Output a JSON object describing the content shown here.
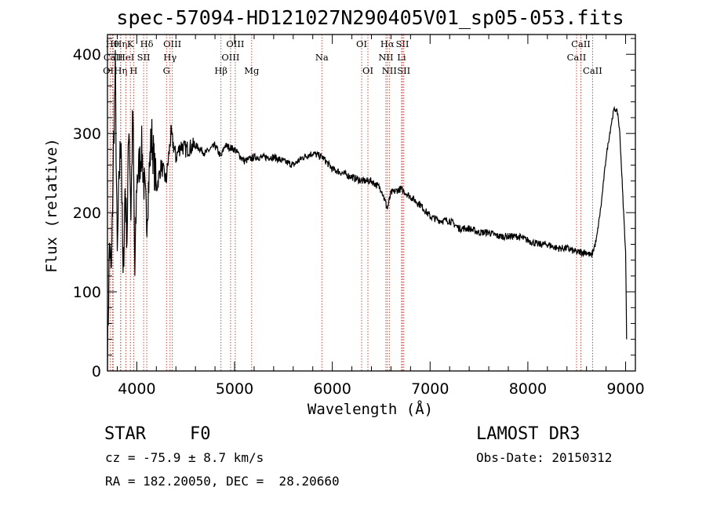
{
  "chart_data": {
    "type": "line",
    "title": "spec-57094-HD121027N290405V01_sp05-053.fits",
    "xlabel": "Wavelength (Å)",
    "ylabel": "Flux (relative)",
    "xlim": [
      3700,
      9100
    ],
    "ylim": [
      0,
      425
    ],
    "xticks": [
      4000,
      5000,
      6000,
      7000,
      8000,
      9000
    ],
    "yticks": [
      0,
      100,
      200,
      300,
      400
    ],
    "grid": false,
    "series": [
      {
        "name": "flux",
        "x": [
          3700,
          3720,
          3740,
          3760,
          3780,
          3800,
          3820,
          3840,
          3860,
          3880,
          3900,
          3920,
          3940,
          3960,
          3980,
          4000,
          4050,
          4100,
          4150,
          4200,
          4250,
          4300,
          4350,
          4400,
          4450,
          4500,
          4600,
          4700,
          4800,
          4861,
          4900,
          5000,
          5100,
          5200,
          5300,
          5400,
          5500,
          5600,
          5700,
          5800,
          5900,
          6000,
          6100,
          6200,
          6300,
          6400,
          6500,
          6563,
          6600,
          6700,
          6800,
          6900,
          7000,
          7100,
          7200,
          7300,
          7400,
          7500,
          7600,
          7700,
          7800,
          7900,
          8000,
          8100,
          8200,
          8300,
          8400,
          8500,
          8600,
          8650,
          8700,
          8750,
          8800,
          8850,
          8880,
          8900,
          8920,
          8940,
          8960,
          8980,
          9000,
          9010
        ],
        "y": [
          10,
          160,
          120,
          270,
          380,
          140,
          250,
          300,
          110,
          230,
          170,
          320,
          200,
          330,
          120,
          240,
          280,
          190,
          300,
          230,
          260,
          240,
          300,
          270,
          285,
          280,
          285,
          275,
          285,
          270,
          285,
          280,
          265,
          270,
          270,
          270,
          265,
          260,
          270,
          275,
          270,
          255,
          250,
          245,
          240,
          240,
          230,
          205,
          225,
          230,
          220,
          210,
          195,
          190,
          190,
          180,
          180,
          175,
          175,
          170,
          170,
          170,
          165,
          160,
          160,
          155,
          155,
          150,
          150,
          145,
          165,
          210,
          270,
          310,
          330,
          330,
          325,
          300,
          250,
          200,
          150,
          40
        ]
      }
    ],
    "spectral_lines": [
      {
        "label": "OII",
        "wavelength": 3727,
        "row": 3
      },
      {
        "label": "Hθ",
        "wavelength": 3750,
        "row": 1
      },
      {
        "label": "Hη",
        "wavelength": 3835,
        "row": 1
      },
      {
        "label": "CaII",
        "wavelength": 3758,
        "row": 2
      },
      {
        "label": "Hη",
        "wavelength": 3835,
        "row": 3
      },
      {
        "label": "K",
        "wavelength": 3934,
        "row": 1
      },
      {
        "label": "HeI",
        "wavelength": 3889,
        "row": 2
      },
      {
        "label": "H",
        "wavelength": 3968,
        "row": 3
      },
      {
        "label": "Hδ",
        "wavelength": 4102,
        "row": 1
      },
      {
        "label": "SII",
        "wavelength": 4070,
        "row": 2
      },
      {
        "label": "OIII",
        "wavelength": 4363,
        "row": 1
      },
      {
        "label": "Hγ",
        "wavelength": 4340,
        "row": 2
      },
      {
        "label": "G",
        "wavelength": 4304,
        "row": 3
      },
      {
        "label": "Hβ",
        "wavelength": 4861,
        "row": 3
      },
      {
        "label": "OIII",
        "wavelength": 4959,
        "row": 2
      },
      {
        "label": "OIII",
        "wavelength": 5007,
        "row": 1
      },
      {
        "label": "Mg",
        "wavelength": 5175,
        "row": 3
      },
      {
        "label": "Na",
        "wavelength": 5893,
        "row": 2
      },
      {
        "label": "OI",
        "wavelength": 6300,
        "row": 1
      },
      {
        "label": "OI",
        "wavelength": 6364,
        "row": 3
      },
      {
        "label": "Hα",
        "wavelength": 6563,
        "row": 1
      },
      {
        "label": "NII",
        "wavelength": 6548,
        "row": 2
      },
      {
        "label": "NII",
        "wavelength": 6583,
        "row": 3
      },
      {
        "label": "SII",
        "wavelength": 6717,
        "row": 1
      },
      {
        "label": "Li",
        "wavelength": 6708,
        "row": 2
      },
      {
        "label": "SII",
        "wavelength": 6731,
        "row": 3
      },
      {
        "label": "CaII",
        "wavelength": 8498,
        "row": 2
      },
      {
        "label": "CaII",
        "wavelength": 8542,
        "row": 1
      },
      {
        "label": "CaII",
        "wavelength": 8662,
        "row": 3
      }
    ]
  },
  "info": {
    "class_label": "STAR",
    "subclass_label": "F0",
    "survey_label": "LAMOST DR3",
    "redshift_label": "cz = -75.9 ± 8.7 km/s",
    "obs_date_label": "Obs-Date: 20150312",
    "coords_label": "RA = 182.20050, DEC =  28.20660"
  }
}
